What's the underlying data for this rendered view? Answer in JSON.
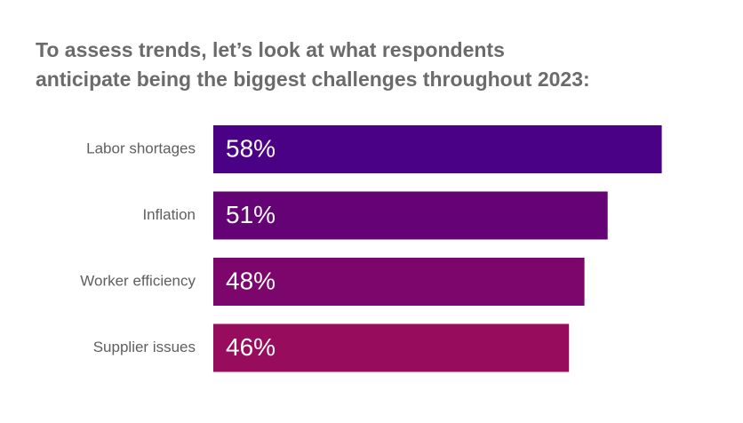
{
  "chart_data": {
    "type": "bar",
    "orientation": "horizontal",
    "title_lines": [
      "To assess trends, let’s look at what respondents",
      "anticipate being the biggest challenges throughout 2023:"
    ],
    "categories": [
      "Labor shortages",
      "Inflation",
      "Worker efficiency",
      "Supplier issues"
    ],
    "values": [
      58,
      51,
      48,
      46
    ],
    "value_labels": [
      "58%",
      "51%",
      "48%",
      "46%"
    ],
    "colors": [
      "#4b0185",
      "#650376",
      "#7c066c",
      "#980c5d"
    ],
    "xlim": [
      0,
      100
    ],
    "xlabel": "",
    "ylabel": "",
    "grid": false,
    "legend": "none"
  }
}
